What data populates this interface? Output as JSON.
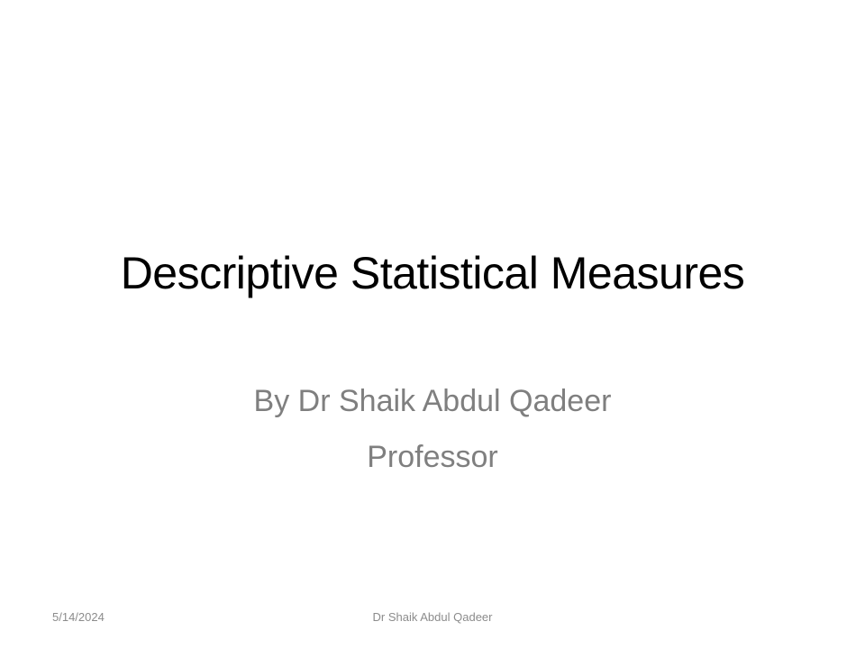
{
  "slide": {
    "title": "Descriptive Statistical Measures",
    "subtitle_lines": [
      "By Dr Shaik Abdul Qadeer",
      "Professor"
    ],
    "footer": {
      "date": "5/14/2024",
      "center": "Dr Shaik Abdul Qadeer"
    }
  },
  "colors": {
    "background": "#ffffff",
    "title": "#000000",
    "subtitle": "#7f7f7f",
    "footer": "#8c8c8c"
  }
}
